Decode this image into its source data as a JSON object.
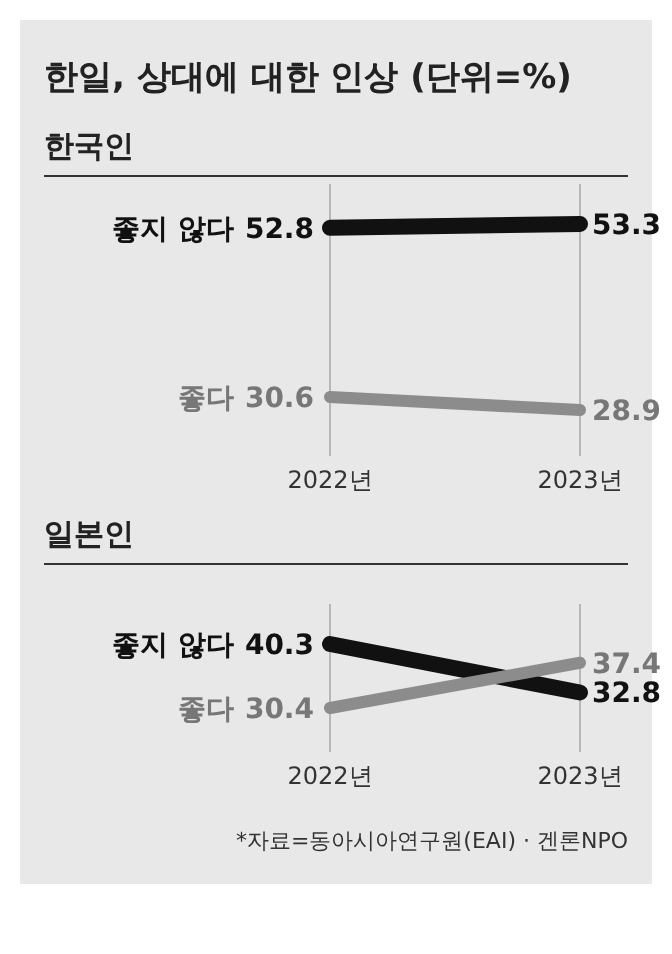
{
  "chart_data": [
    {
      "type": "line",
      "title": "한일, 상대에 대한 인상 (단위=%)",
      "subtitle": "한국인",
      "categories": [
        "2022년",
        "2023년"
      ],
      "grid": "x",
      "data_labels": true,
      "series": [
        {
          "name": "좋지 않다",
          "color": "#111111",
          "values": [
            52.8,
            53.3
          ]
        },
        {
          "name": "좋다",
          "color": "#8c8c8c",
          "values": [
            30.6,
            28.9
          ]
        }
      ]
    },
    {
      "type": "line",
      "title": "일본인",
      "categories": [
        "2022년",
        "2023년"
      ],
      "grid": "x",
      "data_labels": true,
      "series": [
        {
          "name": "좋지 않다",
          "color": "#111111",
          "values": [
            40.3,
            32.8
          ]
        },
        {
          "name": "좋다",
          "color": "#8c8c8c",
          "values": [
            30.4,
            37.4
          ]
        }
      ],
      "annotations": [
        "*자료=동아시아연구원(EAI) · 겐론NPO"
      ]
    }
  ]
}
